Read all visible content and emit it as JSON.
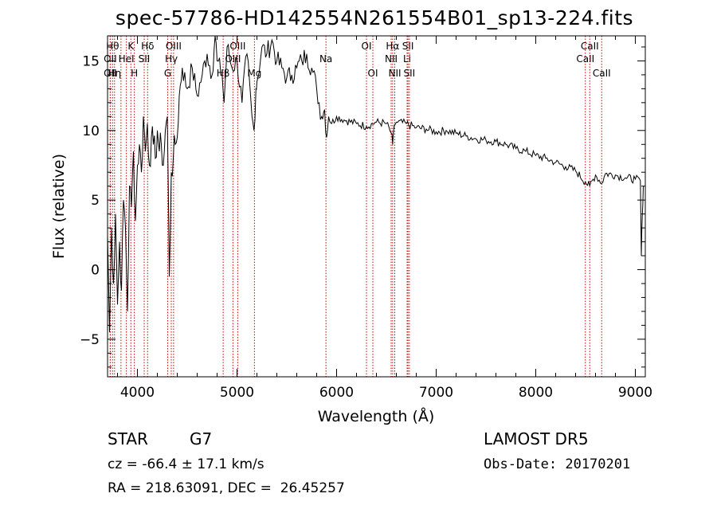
{
  "title": "spec-57786-HD142554N261554B01_sp13-224.fits",
  "footer": {
    "class_label": "STAR",
    "subclass": "G7",
    "survey": "LAMOST DR5",
    "cz": "cz = -66.4 ± 17.1 km/s",
    "obs_date": "Obs-Date: 20170201",
    "coords": "RA = 218.63091, DEC =  26.45257"
  },
  "chart_data": {
    "type": "line",
    "xlabel": "Wavelength (Å)",
    "ylabel": "Flux (relative)",
    "xlim": [
      3700,
      9100
    ],
    "ylim": [
      -7.7,
      16.8
    ],
    "xticks": [
      4000,
      5000,
      6000,
      7000,
      8000,
      9000
    ],
    "yticks": [
      -5,
      0,
      5,
      10,
      15
    ],
    "ytick_labels": [
      "−5",
      "0",
      "5",
      "10",
      "15"
    ],
    "line_color": "#000000",
    "marker_color": "#cc0000",
    "series": [
      {
        "x": [
          3700,
          3720,
          3740,
          3760,
          3780,
          3800,
          3820,
          3840,
          3860,
          3880,
          3900,
          3920,
          3940,
          3960,
          3980,
          4000,
          4020,
          4040,
          4060,
          4080,
          4100,
          4120,
          4140,
          4160,
          4180,
          4200,
          4220,
          4240,
          4260,
          4280,
          4300,
          4320,
          4340,
          4360,
          4380,
          4400,
          4420,
          4450,
          4500,
          4550,
          4600,
          4650,
          4700,
          4750,
          4780,
          4800,
          4850,
          4870,
          4900,
          4950,
          5000,
          5050,
          5100,
          5150,
          5170,
          5190,
          5200,
          5250,
          5300,
          5350,
          5400,
          5450,
          5500,
          5550,
          5600,
          5650,
          5700,
          5750,
          5800,
          5850,
          5880,
          5900,
          5920,
          5950,
          6000,
          6100,
          6200,
          6300,
          6400,
          6500,
          6550,
          6563,
          6580,
          6600,
          6700,
          6800,
          6900,
          7000,
          7100,
          7200,
          7300,
          7400,
          7500,
          7600,
          7700,
          7800,
          7900,
          8000,
          8100,
          8200,
          8300,
          8400,
          8498,
          8542,
          8600,
          8662,
          8700,
          8800,
          8900,
          9000,
          9050,
          9060,
          9070,
          9080
        ],
        "y": [
          2.5,
          -4.5,
          3.0,
          -1.0,
          4.0,
          -2.5,
          2.0,
          -1.5,
          5.0,
          3.0,
          -3.0,
          6.0,
          4.5,
          8.5,
          3.5,
          7.5,
          9.0,
          7.0,
          11.0,
          8.5,
          10.5,
          7.5,
          9.5,
          9.0,
          8.0,
          10.0,
          8.5,
          9.0,
          7.5,
          10.0,
          11.0,
          -0.5,
          7.0,
          8.0,
          9.0,
          9.5,
          12.5,
          14.5,
          13.0,
          14.5,
          12.5,
          14.0,
          15.5,
          14.0,
          17.0,
          15.0,
          14.0,
          12.0,
          16.0,
          14.5,
          15.0,
          12.0,
          15.5,
          11.0,
          10.0,
          13.0,
          13.5,
          16.0,
          15.5,
          16.5,
          15.0,
          14.5,
          13.8,
          14.0,
          14.5,
          15.0,
          15.5,
          14.5,
          13.0,
          11.0,
          11.5,
          9.5,
          11.0,
          10.5,
          11.0,
          10.7,
          10.5,
          10.3,
          10.6,
          10.5,
          9.8,
          9.0,
          10.4,
          10.6,
          10.5,
          10.2,
          10.1,
          9.9,
          10.0,
          9.8,
          9.6,
          9.4,
          9.3,
          9.2,
          9.0,
          8.7,
          8.5,
          8.2,
          8.0,
          7.7,
          7.4,
          7.1,
          6.3,
          6.0,
          6.8,
          6.2,
          6.9,
          6.8,
          6.6,
          6.5,
          6.4,
          1.0,
          4.0,
          6.0
        ]
      }
    ],
    "line_markers": [
      {
        "wl": 3750,
        "label": "Hθ",
        "row": 0
      },
      {
        "wl": 3727,
        "label": "OII",
        "row": 1
      },
      {
        "wl": 3727,
        "label": "OII",
        "row": 2
      },
      {
        "wl": 3770,
        "label": "Hη",
        "row": 2
      },
      {
        "wl": 3835,
        "label": "",
        "row": 0
      },
      {
        "wl": 3889,
        "label": "HeI",
        "row": 1
      },
      {
        "wl": 3934,
        "label": "K",
        "row": 0
      },
      {
        "wl": 3969,
        "label": "H",
        "row": 2
      },
      {
        "wl": 4068,
        "label": "SII",
        "row": 1
      },
      {
        "wl": 4102,
        "label": "Hδ",
        "row": 0
      },
      {
        "wl": 4304,
        "label": "G",
        "row": 2
      },
      {
        "wl": 4340,
        "label": "Hγ",
        "row": 1
      },
      {
        "wl": 4363,
        "label": "OIII",
        "row": 0
      },
      {
        "wl": 4861,
        "label": "Hβ",
        "row": 2
      },
      {
        "wl": 4959,
        "label": "OIII",
        "row": 1
      },
      {
        "wl": 5007,
        "label": "OIII",
        "row": 0
      },
      {
        "wl": 5175,
        "label": "Mg",
        "row": 2
      },
      {
        "wl": 5893,
        "label": "Na",
        "row": 1
      },
      {
        "wl": 6300,
        "label": "OI",
        "row": 0
      },
      {
        "wl": 6364,
        "label": "OI",
        "row": 2
      },
      {
        "wl": 6548,
        "label": "NII",
        "row": 1
      },
      {
        "wl": 6563,
        "label": "Hα",
        "row": 0
      },
      {
        "wl": 6584,
        "label": "NII",
        "row": 2
      },
      {
        "wl": 6708,
        "label": "Li",
        "row": 1
      },
      {
        "wl": 6717,
        "label": "SII",
        "row": 0
      },
      {
        "wl": 6731,
        "label": "SII",
        "row": 2
      },
      {
        "wl": 8498,
        "label": "CaII",
        "row": 1
      },
      {
        "wl": 8542,
        "label": "CaII",
        "row": 0
      },
      {
        "wl": 8662,
        "label": "CaII",
        "row": 2
      }
    ]
  }
}
